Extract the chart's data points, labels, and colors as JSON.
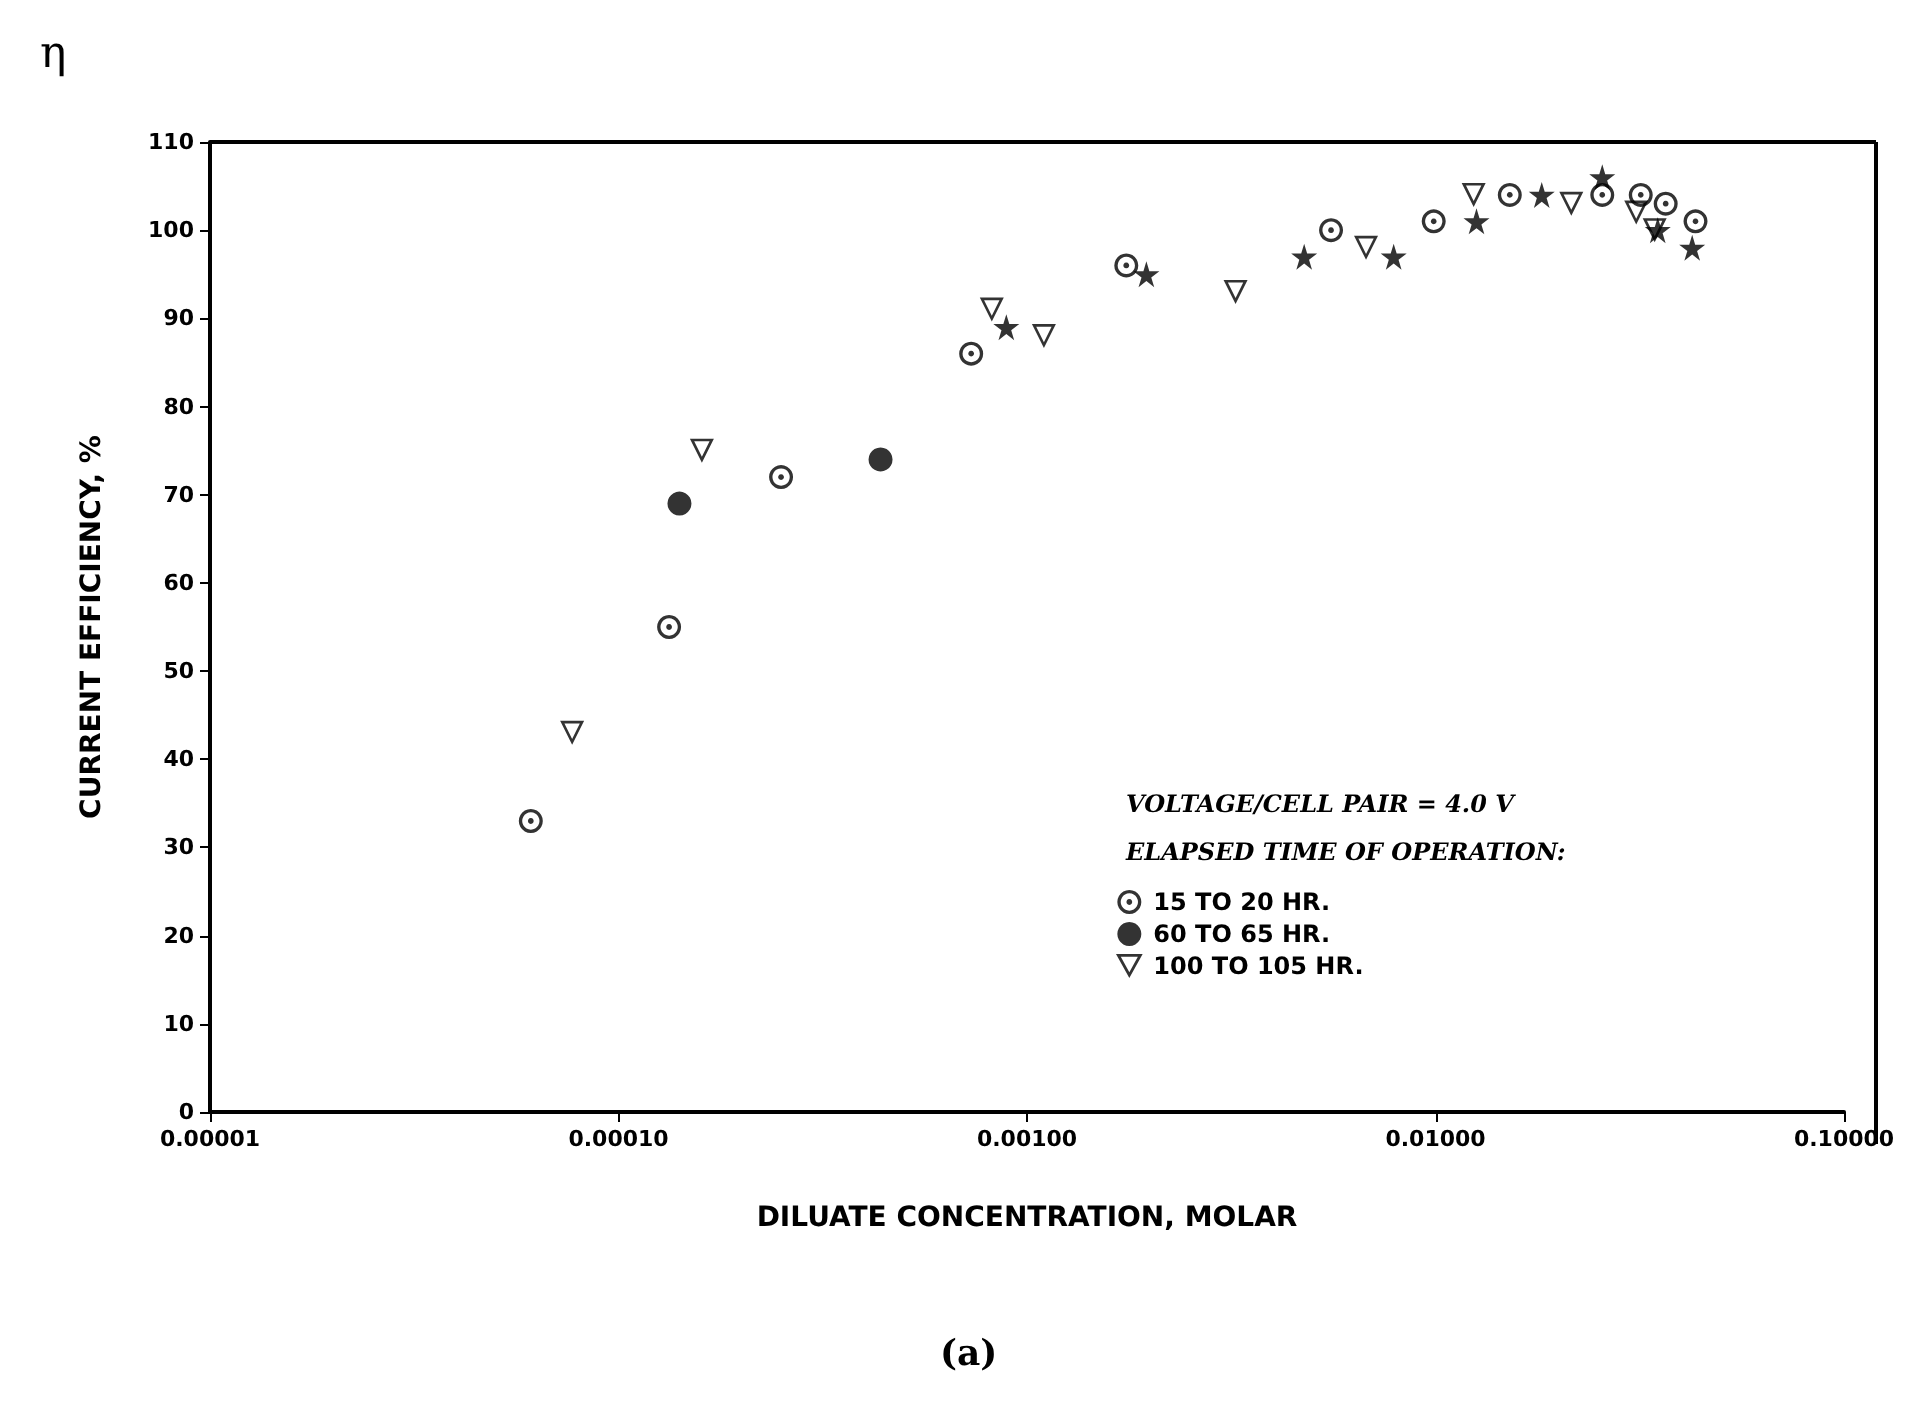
{
  "chart_data": {
    "type": "scatter",
    "xlabel": "DILUATE CONCENTRATION, MOLAR",
    "ylabel": "CURRENT EFFICIENCY, %",
    "legend_title": "ELAPSED TIME OF OPERATION:",
    "annotations": [
      "VOLTAGE/CELL PAIR = 4.0 V",
      "η",
      "(a)"
    ],
    "log": "x",
    "xlim": [
      1e-05,
      0.1
    ],
    "xticks": [
      {
        "value": 1e-05,
        "label": "0.00001"
      },
      {
        "value": 0.0001,
        "label": "0.00010"
      },
      {
        "value": 0.001,
        "label": "0.00100"
      },
      {
        "value": 0.01,
        "label": "0.01000"
      },
      {
        "value": 0.1,
        "label": "0.10000"
      }
    ],
    "ylim": [
      0,
      110
    ],
    "yticks": [
      0,
      10,
      20,
      30,
      40,
      50,
      60,
      70,
      80,
      90,
      100,
      110
    ],
    "grid": false,
    "legend": "bottom",
    "series": [
      {
        "name": "15 TO 20 HR.",
        "color": "#000000",
        "marker": "circle",
        "x": [
          6.1e-05,
          0.000133,
          0.00025,
          0.00073,
          0.00175,
          0.00555,
          0.0099,
          0.0152,
          0.0256,
          0.0318,
          0.0366,
          0.0433
        ],
        "values": [
          33,
          55,
          72,
          86,
          96,
          100,
          101,
          104,
          104,
          104,
          103,
          101
        ]
      },
      {
        "name": "60 TO 65 HR.",
        "color": "#000000",
        "marker": "circle",
        "x": [
          0.000141,
          0.000438
        ],
        "values": [
          69,
          74
        ]
      },
      {
        "name": "100 TO 105 HR.",
        "color": "#000000",
        "marker": "triangle",
        "x": [
          7.7e-05,
          0.00016,
          0.00082,
          0.0011,
          0.00324,
          0.00676,
          0.0124,
          0.0215,
          0.031,
          0.0344
        ],
        "values": [
          43,
          75,
          91,
          88,
          93,
          98,
          104,
          103,
          102,
          100
        ]
      },
      {
        "color": "#000000",
        "marker": "star",
        "x": [
          0.00089,
          0.00196,
          0.00477,
          0.0079,
          0.0126,
          0.0182,
          0.0256,
          0.035,
          0.0425
        ],
        "values": [
          89,
          95,
          97,
          97,
          101,
          104,
          106,
          100,
          98
        ]
      }
    ]
  }
}
